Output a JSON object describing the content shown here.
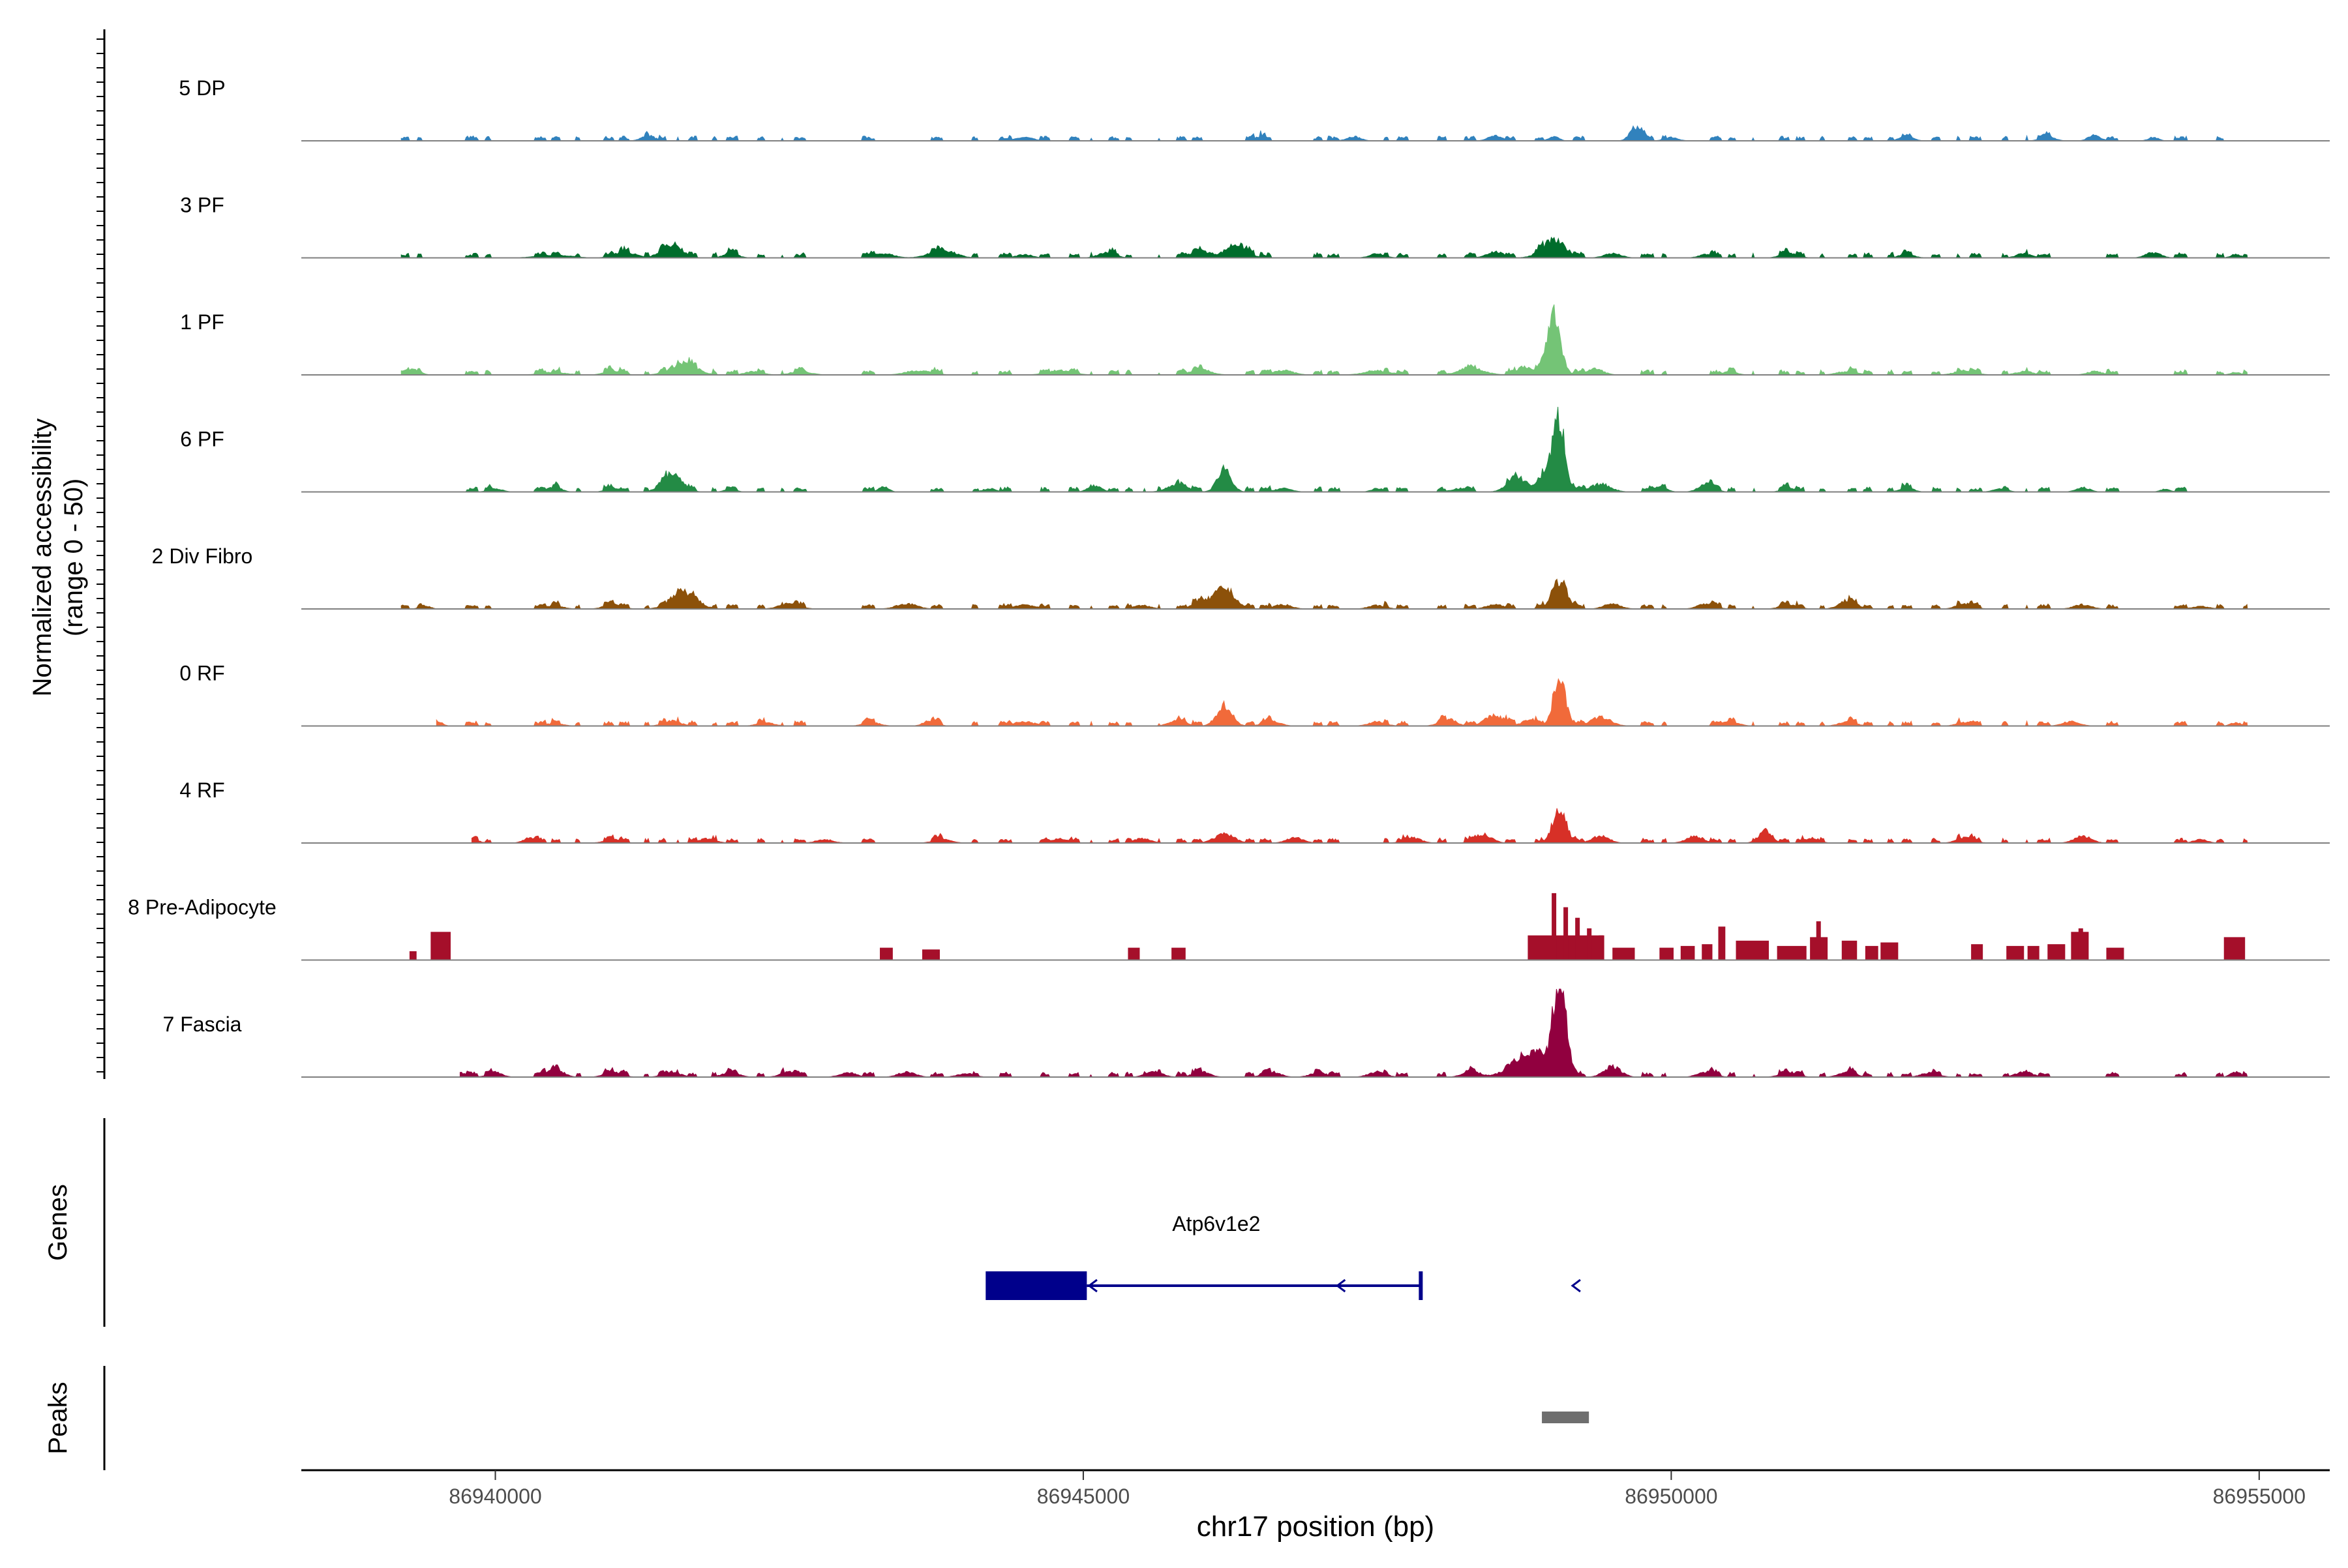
{
  "chart_data": {
    "type": "area",
    "title": "",
    "ylabel": [
      "Normalized accessibility",
      "(range 0 - 50)"
    ],
    "ylim": [
      0,
      50
    ],
    "xlabel": "chr17 position (bp)",
    "xlim": [
      86938350,
      86955600
    ],
    "xticks": [
      86940000,
      86945000,
      86950000,
      86955000
    ],
    "track_labels": [
      "Genes",
      "Peaks"
    ],
    "series": [
      {
        "name": "5 DP",
        "color": "#3182BD",
        "peaks": [
          [
            86939200,
            86948700,
            2,
            60
          ],
          [
            86941300,
            3,
            80
          ],
          [
            86944500,
            2,
            100
          ],
          [
            86946500,
            2.5,
            60
          ],
          [
            86947300,
            2.5,
            80
          ],
          [
            86948500,
            3,
            80
          ],
          [
            86949000,
            2.5,
            60
          ],
          [
            86949700,
            8,
            70
          ],
          [
            86950000,
            2,
            80
          ],
          [
            86952000,
            2.5,
            80
          ],
          [
            86953200,
            3,
            80
          ],
          [
            86953600,
            3.5,
            70
          ],
          [
            86954100,
            2,
            60
          ]
        ],
        "range": [
          86939200,
          86954700
        ]
      },
      {
        "name": "3 PF",
        "color": "#006D2C",
        "peaks": [
          [
            86940500,
            1.5,
            200
          ],
          [
            86941100,
            3.5,
            120
          ],
          [
            86941500,
            8,
            120
          ],
          [
            86942000,
            2.5,
            90
          ],
          [
            86943300,
            2.5,
            120
          ],
          [
            86943800,
            4.5,
            150
          ],
          [
            86944500,
            2,
            90
          ],
          [
            86945200,
            3,
            100
          ],
          [
            86946000,
            4,
            120
          ],
          [
            86946300,
            8,
            120
          ],
          [
            86947500,
            2.5,
            90
          ],
          [
            86948500,
            3.5,
            100
          ],
          [
            86949000,
            10,
            140
          ],
          [
            86949500,
            2.5,
            100
          ],
          [
            86950300,
            2,
            90
          ],
          [
            86951000,
            2.5,
            100
          ],
          [
            86952000,
            2,
            90
          ],
          [
            86953000,
            2.5,
            90
          ],
          [
            86954100,
            3,
            90
          ],
          [
            86954800,
            2,
            60
          ]
        ],
        "range": [
          86939200,
          86954900
        ]
      },
      {
        "name": "1 PF",
        "color": "#74C476",
        "peaks": [
          [
            86939300,
            3,
            80
          ],
          [
            86940500,
            1.5,
            150
          ],
          [
            86941000,
            2.5,
            100
          ],
          [
            86941600,
            7,
            150
          ],
          [
            86942200,
            2,
            100
          ],
          [
            86942600,
            2,
            120
          ],
          [
            86943600,
            2.5,
            150
          ],
          [
            86944800,
            2.5,
            150
          ],
          [
            86946000,
            3,
            120
          ],
          [
            86946700,
            2.5,
            120
          ],
          [
            86947500,
            2.5,
            150
          ],
          [
            86948300,
            4,
            150
          ],
          [
            86948750,
            5,
            90
          ],
          [
            86949000,
            36,
            80
          ],
          [
            86949350,
            3.5,
            100
          ],
          [
            86950500,
            2,
            80
          ],
          [
            86951500,
            2,
            120
          ],
          [
            86952500,
            2.5,
            120
          ],
          [
            86953000,
            2,
            100
          ],
          [
            86953600,
            2,
            90
          ],
          [
            86954800,
            1.5,
            60
          ]
        ],
        "range": [
          86939200,
          86954900
        ]
      },
      {
        "name": "6 PF",
        "color": "#238B45",
        "peaks": [
          [
            86940000,
            2,
            80
          ],
          [
            86940500,
            3,
            80
          ],
          [
            86941000,
            2.5,
            80
          ],
          [
            86941500,
            10,
            120
          ],
          [
            86942000,
            1.5,
            70
          ],
          [
            86943300,
            3,
            60
          ],
          [
            86944200,
            2,
            70
          ],
          [
            86945100,
            3.5,
            80
          ],
          [
            86945800,
            4,
            120
          ],
          [
            86946200,
            14,
            80
          ],
          [
            86946700,
            2,
            100
          ],
          [
            86947500,
            2,
            70
          ],
          [
            86948200,
            2,
            100
          ],
          [
            86948700,
            8,
            120
          ],
          [
            86948950,
            12,
            80
          ],
          [
            86949050,
            40,
            70
          ],
          [
            86949400,
            4.5,
            120
          ],
          [
            86949900,
            3,
            80
          ],
          [
            86950300,
            5,
            90
          ],
          [
            86951000,
            2.5,
            80
          ],
          [
            86952000,
            2.5,
            80
          ],
          [
            86952800,
            2,
            80
          ],
          [
            86953500,
            2.5,
            80
          ],
          [
            86954200,
            1.5,
            60
          ]
        ],
        "range": [
          86939400,
          86954400
        ]
      },
      {
        "name": "2 Div Fibro",
        "color": "#8C510A",
        "peaks": [
          [
            86939400,
            2,
            60
          ],
          [
            86940500,
            2,
            100
          ],
          [
            86941000,
            3,
            100
          ],
          [
            86941600,
            10,
            150
          ],
          [
            86942500,
            3,
            120
          ],
          [
            86943500,
            3,
            120
          ],
          [
            86944500,
            2.5,
            120
          ],
          [
            86945500,
            2,
            100
          ],
          [
            86946000,
            4,
            100
          ],
          [
            86946200,
            12,
            120
          ],
          [
            86946700,
            2.5,
            100
          ],
          [
            86947500,
            2,
            100
          ],
          [
            86948500,
            2.5,
            100
          ],
          [
            86949050,
            17,
            90
          ],
          [
            86949500,
            3,
            100
          ],
          [
            86950300,
            3,
            100
          ],
          [
            86951000,
            2.5,
            100
          ],
          [
            86951500,
            5,
            100
          ],
          [
            86952500,
            3,
            100
          ],
          [
            86953500,
            2.5,
            100
          ],
          [
            86954500,
            1.5,
            100
          ]
        ],
        "range": [
          86939200,
          86954900
        ]
      },
      {
        "name": "0 RF",
        "color": "#F16A3A",
        "peaks": [
          [
            86939500,
            3,
            60
          ],
          [
            86940500,
            1.5,
            100
          ],
          [
            86941500,
            3,
            100
          ],
          [
            86942300,
            2,
            100
          ],
          [
            86943200,
            2,
            100
          ],
          [
            86943700,
            3,
            80
          ],
          [
            86944500,
            2.5,
            120
          ],
          [
            86945800,
            3,
            100
          ],
          [
            86946200,
            12,
            90
          ],
          [
            86946600,
            3,
            100
          ],
          [
            86947500,
            2.5,
            100
          ],
          [
            86948100,
            4,
            100
          ],
          [
            86948500,
            6,
            120
          ],
          [
            86948800,
            4,
            80
          ],
          [
            86949050,
            30,
            70
          ],
          [
            86949400,
            5,
            120
          ],
          [
            86950500,
            2.5,
            100
          ],
          [
            86951500,
            2.5,
            100
          ],
          [
            86952500,
            2,
            100
          ],
          [
            86953400,
            2.5,
            100
          ],
          [
            86954800,
            2,
            60
          ]
        ],
        "range": [
          86939500,
          86954900
        ]
      },
      {
        "name": "4 RF",
        "color": "#D73027",
        "peaks": [
          [
            86939800,
            2,
            80
          ],
          [
            86940300,
            3,
            80
          ],
          [
            86941000,
            2,
            100
          ],
          [
            86941800,
            2.5,
            100
          ],
          [
            86942800,
            2,
            100
          ],
          [
            86943800,
            2.5,
            100
          ],
          [
            86944800,
            2.5,
            100
          ],
          [
            86945500,
            2.5,
            100
          ],
          [
            86946200,
            5,
            120
          ],
          [
            86946800,
            3,
            100
          ],
          [
            86947800,
            3,
            100
          ],
          [
            86948400,
            5,
            100
          ],
          [
            86949050,
            20,
            80
          ],
          [
            86949400,
            4,
            100
          ],
          [
            86950200,
            4,
            100
          ],
          [
            86950800,
            7,
            80
          ],
          [
            86951200,
            3,
            80
          ],
          [
            86952500,
            3,
            100
          ],
          [
            86953500,
            4,
            100
          ],
          [
            86954500,
            2,
            80
          ]
        ],
        "range": [
          86939800,
          86954900
        ]
      },
      {
        "name": "8 Pre-Adipocyte",
        "color": "#A50F2A",
        "blocks": [
          [
            86939270,
            86939330,
            5
          ],
          [
            86939450,
            86939620,
            16
          ],
          [
            86943270,
            86943380,
            7
          ],
          [
            86943630,
            86943780,
            6
          ],
          [
            86945380,
            86945480,
            7
          ],
          [
            86945750,
            86945870,
            7
          ],
          [
            86948780,
            86949430,
            14
          ],
          [
            86949500,
            86949690,
            7
          ],
          [
            86949900,
            86950020,
            7
          ],
          [
            86950080,
            86950200,
            8
          ],
          [
            86950260,
            86950350,
            9
          ],
          [
            86950400,
            86950460,
            19
          ],
          [
            86950550,
            86950830,
            11
          ],
          [
            86950900,
            86951150,
            8
          ],
          [
            86951180,
            86951330,
            13
          ],
          [
            86951450,
            86951580,
            11
          ],
          [
            86951650,
            86951760,
            8
          ],
          [
            86951780,
            86951930,
            10
          ],
          [
            86952550,
            86952650,
            9
          ],
          [
            86952850,
            86953000,
            8
          ],
          [
            86953030,
            86953130,
            8
          ],
          [
            86953200,
            86953350,
            9
          ],
          [
            86953400,
            86953550,
            16
          ],
          [
            86953700,
            86953850,
            7
          ],
          [
            86954700,
            86954880,
            13
          ]
        ],
        "spikes": [
          [
            86949000,
            38
          ],
          [
            86949100,
            30
          ],
          [
            86949200,
            24
          ],
          [
            86949300,
            18
          ],
          [
            86949400,
            14
          ],
          [
            86951250,
            22
          ],
          [
            86953480,
            18
          ]
        ]
      },
      {
        "name": "7 Fascia",
        "color": "#91003F",
        "peaks": [
          [
            86939700,
            2.5,
            100
          ],
          [
            86940000,
            3,
            80
          ],
          [
            86940500,
            5,
            100
          ],
          [
            86941000,
            3,
            100
          ],
          [
            86941500,
            3,
            100
          ],
          [
            86942000,
            2.5,
            100
          ],
          [
            86942500,
            3,
            100
          ],
          [
            86943000,
            2.5,
            100
          ],
          [
            86943500,
            3,
            100
          ],
          [
            86944000,
            2,
            100
          ],
          [
            86945600,
            3,
            100
          ],
          [
            86946000,
            3,
            100
          ],
          [
            86946600,
            3,
            100
          ],
          [
            86947000,
            2.5,
            100
          ],
          [
            86947500,
            3,
            100
          ],
          [
            86948300,
            3.5,
            100
          ],
          [
            86948800,
            14,
            200
          ],
          [
            86949050,
            52,
            80
          ],
          [
            86949500,
            6,
            100
          ],
          [
            86950300,
            3,
            100
          ],
          [
            86951000,
            3,
            100
          ],
          [
            86951500,
            3,
            100
          ],
          [
            86952200,
            2.5,
            100
          ],
          [
            86953000,
            3,
            100
          ],
          [
            86954800,
            3,
            60
          ]
        ],
        "range": [
          86939700,
          86954900
        ]
      }
    ],
    "gene": {
      "name": "Atp6v1e2",
      "exon": [
        86944170,
        86945030
      ],
      "intron": [
        86945030,
        86947870
      ],
      "strand": "-",
      "color": "#00008B"
    },
    "peak_regions": [
      [
        86948900,
        86949300
      ]
    ],
    "peak_color": "#6E6E6E"
  }
}
